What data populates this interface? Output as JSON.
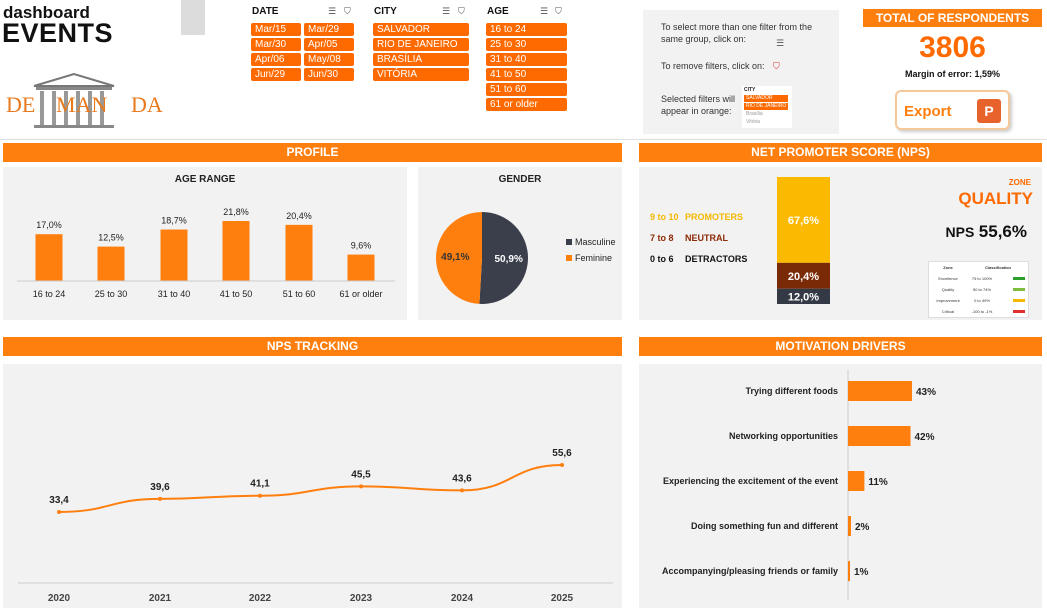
{
  "header": {
    "title_small": "dashboard",
    "title_big": "EVENTS",
    "logo_text_left": "DE",
    "logo_text_mid": "MAN",
    "logo_text_right": "DA"
  },
  "filters": {
    "date": {
      "title": "DATE",
      "items": [
        "Mar/15",
        "Mar/29",
        "Mar/30",
        "Apr/05",
        "Apr/06",
        "May/08",
        "Jun/29",
        "Jun/30"
      ]
    },
    "city": {
      "title": "CITY",
      "items": [
        "SALVADOR",
        "RIO DE JANEIRO",
        "BRASÍLIA",
        "VITÓRIA"
      ]
    },
    "age": {
      "title": "AGE",
      "items": [
        "16 to 24",
        "25 to 30",
        "31 to 40",
        "41 to 50",
        "51 to 60",
        "61 or older"
      ]
    }
  },
  "instructions": {
    "multi": "To select more than one filter from the same group, click on:",
    "remove": "To remove filters, click on:",
    "selected": "Selected filters will appear in orange:",
    "mini_title": "CITY",
    "mini_items": [
      "SALVADOR",
      "RIO DE JANEIRO",
      "Brasília",
      "Vitória"
    ]
  },
  "respondents": {
    "title": "TOTAL OF RESPONDENTS",
    "count": "3806",
    "margin_label": "Margin of error:",
    "margin_value": "1,59%"
  },
  "export": {
    "label": "Export"
  },
  "sections": {
    "profile": "PROFILE",
    "nps": "NET PROMOTER SCORE (NPS)",
    "tracking": "NPS TRACKING",
    "motivation": "MOTIVATION DRIVERS"
  },
  "age_chart": {
    "title": "AGE RANGE",
    "categories": [
      "16 to 24",
      "25 to 30",
      "31 to 40",
      "41 to 50",
      "51 to 60",
      "61 or older"
    ],
    "values": [
      17.0,
      12.5,
      18.7,
      21.8,
      20.4,
      9.6
    ],
    "labels": [
      "17,0%",
      "12,5%",
      "18,7%",
      "21,8%",
      "20,4%",
      "9,6%"
    ],
    "color": "#ff7f0e"
  },
  "gender_chart": {
    "title": "GENDER",
    "slices": [
      {
        "name": "Masculine",
        "value": 50.9,
        "label": "50,9%",
        "color": "#3a3f4b"
      },
      {
        "name": "Feminine",
        "value": 49.1,
        "label": "49,1%",
        "color": "#ff7f0e"
      }
    ]
  },
  "nps": {
    "rows": [
      {
        "range": "9 to 10",
        "name": "PROMOTERS",
        "color": "#f5b800"
      },
      {
        "range": "7 to 8",
        "name": "NEUTRAL",
        "color": "#8b2a05"
      },
      {
        "range": "0 to 6",
        "name": "DETRACTORS",
        "color": "#111111"
      }
    ],
    "stack": [
      {
        "value": 67.6,
        "label": "67,6%",
        "color": "#fbb900"
      },
      {
        "value": 20.4,
        "label": "20,4%",
        "color": "#7a2a06"
      },
      {
        "value": 12.0,
        "label": "12,0%",
        "color": "#333a45"
      }
    ],
    "zone_label": "ZONE",
    "zone_value": "QUALITY",
    "score_label": "NPS",
    "score_value": "55,6%",
    "legend_headers": [
      "Zone",
      "Classification"
    ],
    "legend_rows": [
      {
        "zone": "Excellence",
        "range": "75 to 100%"
      },
      {
        "zone": "Quality",
        "range": "50 to 74%"
      },
      {
        "zone": "Improvement",
        "range": "0 to 49%"
      },
      {
        "zone": "Critical",
        "range": "-100 to -1%"
      }
    ]
  },
  "chart_data": {
    "type": "line",
    "x": [
      "2020",
      "2021",
      "2022",
      "2023",
      "2024",
      "2025"
    ],
    "values": [
      33.4,
      39.6,
      41.1,
      45.5,
      43.6,
      55.6
    ],
    "labels": [
      "33,4",
      "39,6",
      "41,1",
      "45,5",
      "43,6",
      "55,6"
    ],
    "color": "#ff7f0e"
  },
  "motivation": {
    "items": [
      {
        "label": "Trying different foods",
        "value": 43,
        "text": "43%"
      },
      {
        "label": "Networking opportunities",
        "value": 42,
        "text": "42%"
      },
      {
        "label": "Experiencing the excitement of the event",
        "value": 11,
        "text": "11%"
      },
      {
        "label": "Doing something fun and different",
        "value": 2,
        "text": "2%"
      },
      {
        "label": "Accompanying/pleasing friends or family",
        "value": 1,
        "text": "1%"
      }
    ],
    "color": "#ff7f0e"
  }
}
